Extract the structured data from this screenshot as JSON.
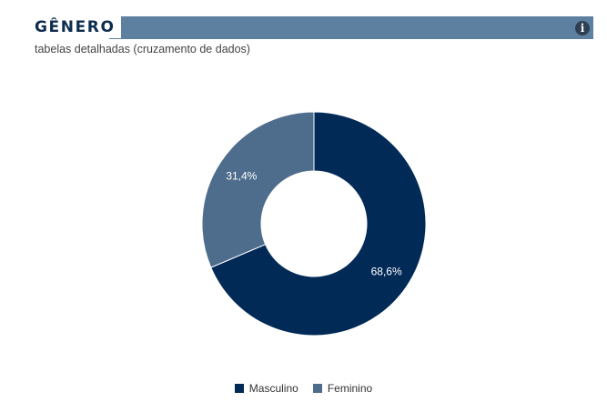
{
  "header": {
    "title": "GÊNERO",
    "subtitle": "tabelas detalhadas (cruzamento de dados)",
    "info_icon": "info-icon"
  },
  "colors": {
    "header_bar": "#5d7fa0",
    "masculino": "#022a57",
    "feminino": "#4e6d8c"
  },
  "chart_data": {
    "type": "pie",
    "variant": "donut",
    "title": "GÊNERO",
    "series": [
      {
        "name": "Masculino",
        "value": 68.6,
        "label": "68,6%",
        "color": "#022a57"
      },
      {
        "name": "Feminino",
        "value": 31.4,
        "label": "31,4%",
        "color": "#4e6d8c"
      }
    ],
    "legend_position": "bottom-center"
  }
}
